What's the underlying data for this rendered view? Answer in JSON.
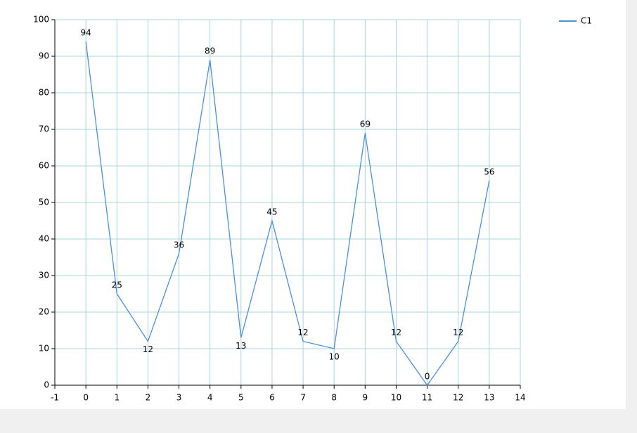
{
  "chart_data": {
    "type": "line",
    "x": [
      0,
      1,
      2,
      3,
      4,
      5,
      6,
      7,
      8,
      9,
      10,
      11,
      12,
      13
    ],
    "series": [
      {
        "name": "C1",
        "color": "#4a8fe0",
        "values": [
          94,
          25,
          12,
          36,
          89,
          13,
          45,
          12,
          10,
          69,
          12,
          0,
          12,
          56
        ]
      }
    ],
    "xlim": [
      -1,
      14
    ],
    "xticks": [
      -1,
      0,
      1,
      2,
      3,
      4,
      5,
      6,
      7,
      8,
      9,
      10,
      11,
      12,
      13,
      14
    ],
    "ylim": [
      0,
      100
    ],
    "yticks": [
      0,
      10,
      20,
      30,
      40,
      50,
      60,
      70,
      80,
      90,
      100
    ],
    "grid": true,
    "grid_color": "#a8d4d8",
    "legend": "top-right",
    "data_labels": true
  }
}
